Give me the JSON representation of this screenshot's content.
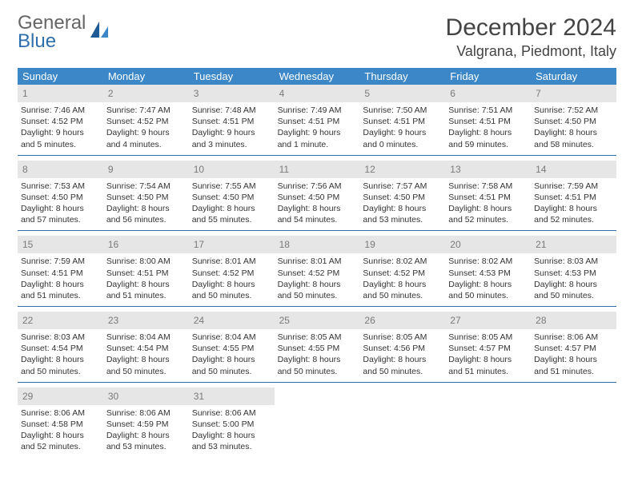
{
  "logo": {
    "line1": "General",
    "line2": "Blue"
  },
  "title": "December 2024",
  "location": "Valgrana, Piedmont, Italy",
  "colors": {
    "header_bg": "#3b87c8",
    "header_text": "#ffffff",
    "daynum_bg": "#e6e6e6",
    "daynum_text": "#7a7a7a",
    "week_border": "#2f6fab",
    "body_text": "#333333",
    "logo_gray": "#666666",
    "logo_blue": "#2f6fab"
  },
  "day_names": [
    "Sunday",
    "Monday",
    "Tuesday",
    "Wednesday",
    "Thursday",
    "Friday",
    "Saturday"
  ],
  "weeks": [
    [
      {
        "n": "1",
        "sr": "Sunrise: 7:46 AM",
        "ss": "Sunset: 4:52 PM",
        "dl1": "Daylight: 9 hours",
        "dl2": "and 5 minutes."
      },
      {
        "n": "2",
        "sr": "Sunrise: 7:47 AM",
        "ss": "Sunset: 4:52 PM",
        "dl1": "Daylight: 9 hours",
        "dl2": "and 4 minutes."
      },
      {
        "n": "3",
        "sr": "Sunrise: 7:48 AM",
        "ss": "Sunset: 4:51 PM",
        "dl1": "Daylight: 9 hours",
        "dl2": "and 3 minutes."
      },
      {
        "n": "4",
        "sr": "Sunrise: 7:49 AM",
        "ss": "Sunset: 4:51 PM",
        "dl1": "Daylight: 9 hours",
        "dl2": "and 1 minute."
      },
      {
        "n": "5",
        "sr": "Sunrise: 7:50 AM",
        "ss": "Sunset: 4:51 PM",
        "dl1": "Daylight: 9 hours",
        "dl2": "and 0 minutes."
      },
      {
        "n": "6",
        "sr": "Sunrise: 7:51 AM",
        "ss": "Sunset: 4:51 PM",
        "dl1": "Daylight: 8 hours",
        "dl2": "and 59 minutes."
      },
      {
        "n": "7",
        "sr": "Sunrise: 7:52 AM",
        "ss": "Sunset: 4:50 PM",
        "dl1": "Daylight: 8 hours",
        "dl2": "and 58 minutes."
      }
    ],
    [
      {
        "n": "8",
        "sr": "Sunrise: 7:53 AM",
        "ss": "Sunset: 4:50 PM",
        "dl1": "Daylight: 8 hours",
        "dl2": "and 57 minutes."
      },
      {
        "n": "9",
        "sr": "Sunrise: 7:54 AM",
        "ss": "Sunset: 4:50 PM",
        "dl1": "Daylight: 8 hours",
        "dl2": "and 56 minutes."
      },
      {
        "n": "10",
        "sr": "Sunrise: 7:55 AM",
        "ss": "Sunset: 4:50 PM",
        "dl1": "Daylight: 8 hours",
        "dl2": "and 55 minutes."
      },
      {
        "n": "11",
        "sr": "Sunrise: 7:56 AM",
        "ss": "Sunset: 4:50 PM",
        "dl1": "Daylight: 8 hours",
        "dl2": "and 54 minutes."
      },
      {
        "n": "12",
        "sr": "Sunrise: 7:57 AM",
        "ss": "Sunset: 4:50 PM",
        "dl1": "Daylight: 8 hours",
        "dl2": "and 53 minutes."
      },
      {
        "n": "13",
        "sr": "Sunrise: 7:58 AM",
        "ss": "Sunset: 4:51 PM",
        "dl1": "Daylight: 8 hours",
        "dl2": "and 52 minutes."
      },
      {
        "n": "14",
        "sr": "Sunrise: 7:59 AM",
        "ss": "Sunset: 4:51 PM",
        "dl1": "Daylight: 8 hours",
        "dl2": "and 52 minutes."
      }
    ],
    [
      {
        "n": "15",
        "sr": "Sunrise: 7:59 AM",
        "ss": "Sunset: 4:51 PM",
        "dl1": "Daylight: 8 hours",
        "dl2": "and 51 minutes."
      },
      {
        "n": "16",
        "sr": "Sunrise: 8:00 AM",
        "ss": "Sunset: 4:51 PM",
        "dl1": "Daylight: 8 hours",
        "dl2": "and 51 minutes."
      },
      {
        "n": "17",
        "sr": "Sunrise: 8:01 AM",
        "ss": "Sunset: 4:52 PM",
        "dl1": "Daylight: 8 hours",
        "dl2": "and 50 minutes."
      },
      {
        "n": "18",
        "sr": "Sunrise: 8:01 AM",
        "ss": "Sunset: 4:52 PM",
        "dl1": "Daylight: 8 hours",
        "dl2": "and 50 minutes."
      },
      {
        "n": "19",
        "sr": "Sunrise: 8:02 AM",
        "ss": "Sunset: 4:52 PM",
        "dl1": "Daylight: 8 hours",
        "dl2": "and 50 minutes."
      },
      {
        "n": "20",
        "sr": "Sunrise: 8:02 AM",
        "ss": "Sunset: 4:53 PM",
        "dl1": "Daylight: 8 hours",
        "dl2": "and 50 minutes."
      },
      {
        "n": "21",
        "sr": "Sunrise: 8:03 AM",
        "ss": "Sunset: 4:53 PM",
        "dl1": "Daylight: 8 hours",
        "dl2": "and 50 minutes."
      }
    ],
    [
      {
        "n": "22",
        "sr": "Sunrise: 8:03 AM",
        "ss": "Sunset: 4:54 PM",
        "dl1": "Daylight: 8 hours",
        "dl2": "and 50 minutes."
      },
      {
        "n": "23",
        "sr": "Sunrise: 8:04 AM",
        "ss": "Sunset: 4:54 PM",
        "dl1": "Daylight: 8 hours",
        "dl2": "and 50 minutes."
      },
      {
        "n": "24",
        "sr": "Sunrise: 8:04 AM",
        "ss": "Sunset: 4:55 PM",
        "dl1": "Daylight: 8 hours",
        "dl2": "and 50 minutes."
      },
      {
        "n": "25",
        "sr": "Sunrise: 8:05 AM",
        "ss": "Sunset: 4:55 PM",
        "dl1": "Daylight: 8 hours",
        "dl2": "and 50 minutes."
      },
      {
        "n": "26",
        "sr": "Sunrise: 8:05 AM",
        "ss": "Sunset: 4:56 PM",
        "dl1": "Daylight: 8 hours",
        "dl2": "and 50 minutes."
      },
      {
        "n": "27",
        "sr": "Sunrise: 8:05 AM",
        "ss": "Sunset: 4:57 PM",
        "dl1": "Daylight: 8 hours",
        "dl2": "and 51 minutes."
      },
      {
        "n": "28",
        "sr": "Sunrise: 8:06 AM",
        "ss": "Sunset: 4:57 PM",
        "dl1": "Daylight: 8 hours",
        "dl2": "and 51 minutes."
      }
    ],
    [
      {
        "n": "29",
        "sr": "Sunrise: 8:06 AM",
        "ss": "Sunset: 4:58 PM",
        "dl1": "Daylight: 8 hours",
        "dl2": "and 52 minutes."
      },
      {
        "n": "30",
        "sr": "Sunrise: 8:06 AM",
        "ss": "Sunset: 4:59 PM",
        "dl1": "Daylight: 8 hours",
        "dl2": "and 53 minutes."
      },
      {
        "n": "31",
        "sr": "Sunrise: 8:06 AM",
        "ss": "Sunset: 5:00 PM",
        "dl1": "Daylight: 8 hours",
        "dl2": "and 53 minutes."
      },
      null,
      null,
      null,
      null
    ]
  ]
}
